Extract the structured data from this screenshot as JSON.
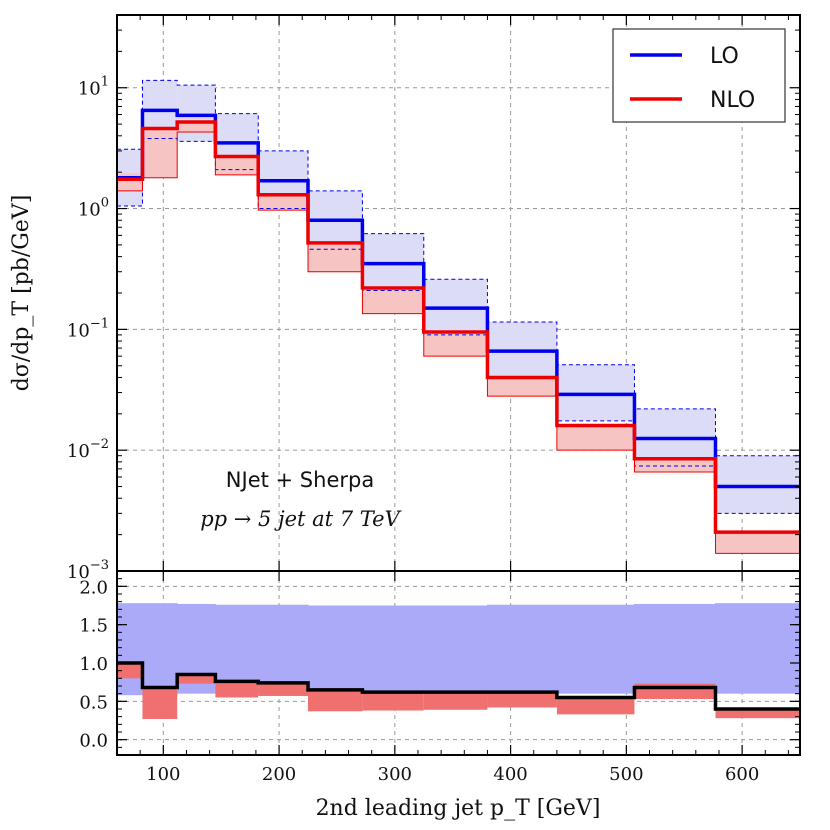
{
  "chart_data": {
    "type": "line",
    "x_label": "2nd leading jet p_T [GeV]",
    "y_label": "dσ/dp_T [pb/GeV]",
    "annotation_line1": "NJet + Sherpa",
    "annotation_line2": "pp → 5 jet at 7 TeV",
    "bin_edges": [
      60,
      82,
      112,
      145,
      182,
      225,
      272,
      325,
      380,
      440,
      507,
      577,
      650
    ],
    "x_range": [
      60,
      650
    ],
    "x_ticks": [
      100,
      200,
      300,
      400,
      500,
      600
    ],
    "top_panel": {
      "y_scale": "log",
      "y_range": [
        0.001,
        40
      ],
      "y_ticks": [
        {
          "value": 10,
          "label": "10^1"
        },
        {
          "value": 1,
          "label": "10^0"
        },
        {
          "value": 0.1,
          "label": "10^-1"
        },
        {
          "value": 0.01,
          "label": "10^-2"
        },
        {
          "value": 0.001,
          "label": "10^-3"
        }
      ],
      "grid": true,
      "legend_position": "top-right",
      "series": [
        {
          "name": "LO",
          "color": "#0000ee",
          "values": [
            1.8,
            6.5,
            5.9,
            3.5,
            1.7,
            0.8,
            0.35,
            0.15,
            0.066,
            0.029,
            0.0125,
            0.005
          ],
          "band_low": [
            1.05,
            3.8,
            3.6,
            2.1,
            1.0,
            0.46,
            0.21,
            0.09,
            0.04,
            0.0175,
            0.0074,
            0.003
          ],
          "band_high": [
            3.1,
            11.5,
            10.5,
            6.1,
            3.0,
            1.4,
            0.62,
            0.26,
            0.115,
            0.051,
            0.022,
            0.009
          ]
        },
        {
          "name": "NLO",
          "color": "#ee0000",
          "values": [
            1.75,
            4.6,
            5.2,
            2.7,
            1.3,
            0.52,
            0.22,
            0.095,
            0.04,
            0.016,
            0.0085,
            0.0021
          ],
          "band_low": [
            1.4,
            1.8,
            4.3,
            1.9,
            0.97,
            0.3,
            0.135,
            0.06,
            0.028,
            0.01,
            0.0066,
            0.0014
          ],
          "band_high": [
            1.95,
            4.6,
            5.2,
            2.7,
            1.3,
            0.52,
            0.22,
            0.095,
            0.04,
            0.016,
            0.0085,
            0.0021
          ]
        }
      ]
    },
    "ratio_panel": {
      "y_range": [
        -0.2,
        2.2
      ],
      "y_ticks": [
        "0.0",
        "0.5",
        "1.0",
        "1.5",
        "2.0"
      ],
      "lo_band": {
        "color": "#aaaaf8",
        "low": [
          0.58,
          0.58,
          0.6,
          0.6,
          0.6,
          0.6,
          0.6,
          0.6,
          0.6,
          0.6,
          0.6,
          0.6
        ],
        "high": [
          1.78,
          1.78,
          1.77,
          1.76,
          1.76,
          1.75,
          1.75,
          1.75,
          1.76,
          1.76,
          1.77,
          1.78
        ]
      },
      "ratio_line": {
        "color": "#000000",
        "values": [
          1.0,
          0.68,
          0.85,
          0.76,
          0.74,
          0.65,
          0.62,
          0.62,
          0.62,
          0.55,
          0.68,
          0.4
        ]
      },
      "nlo_band": {
        "color": "#f07070",
        "low": [
          0.8,
          0.27,
          0.73,
          0.55,
          0.57,
          0.37,
          0.38,
          0.39,
          0.42,
          0.33,
          0.53,
          0.28
        ],
        "high": [
          1.02,
          0.68,
          0.86,
          0.77,
          0.76,
          0.66,
          0.63,
          0.63,
          0.63,
          0.57,
          0.73,
          0.41
        ]
      }
    }
  }
}
